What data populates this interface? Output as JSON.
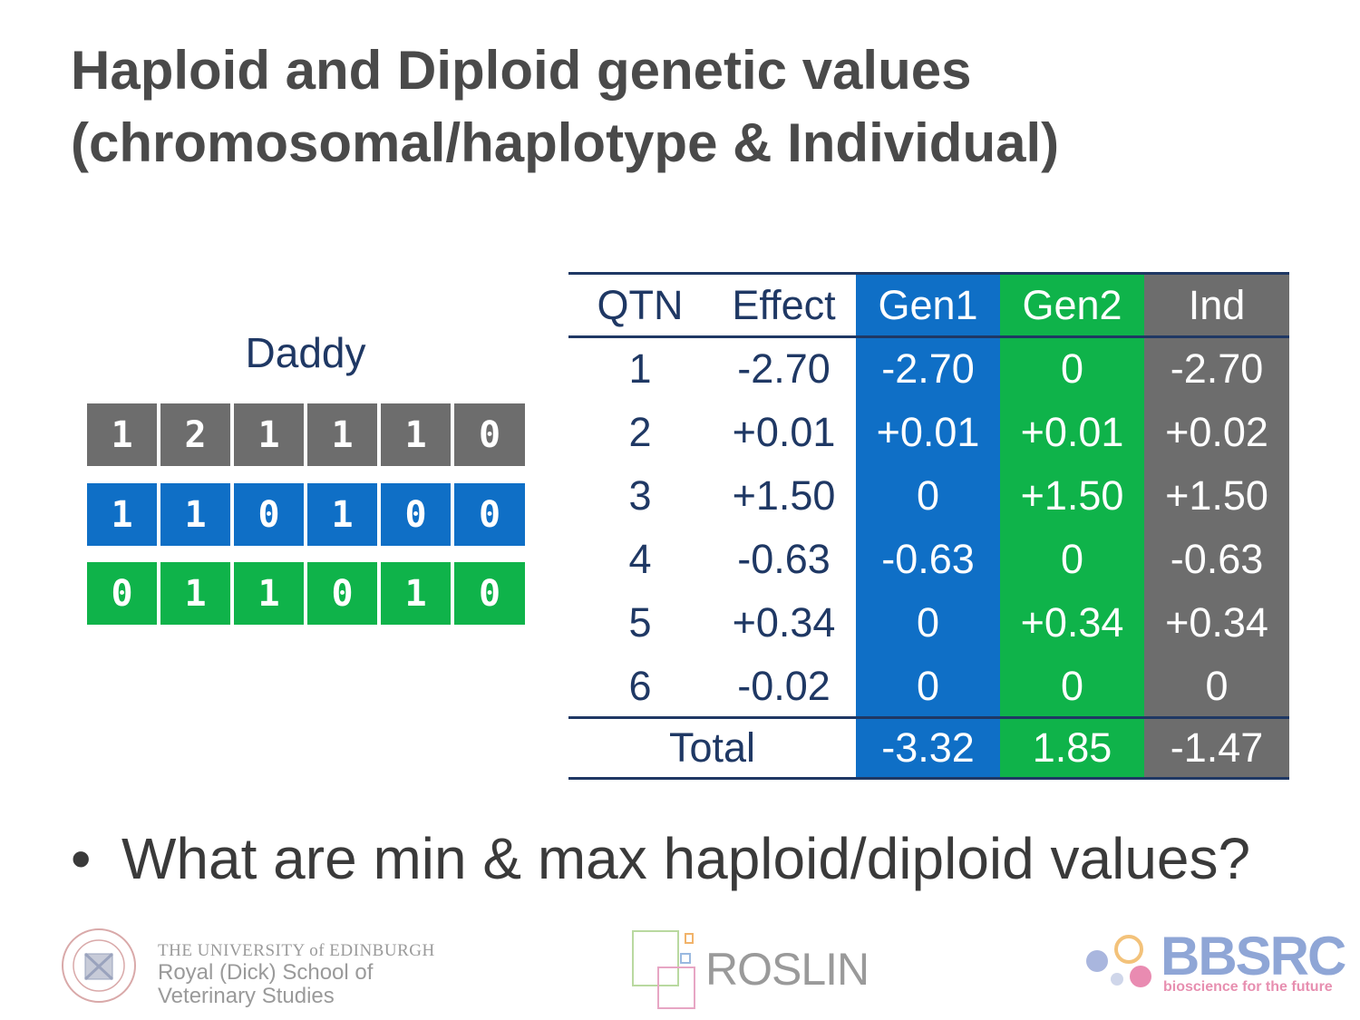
{
  "slide": {
    "title_line1": "Haploid and Diploid genetic values",
    "title_line2": "(chromosomal/haplotype & Individual)",
    "bullet": "What are min & max haploid/diploid values?"
  },
  "daddy": {
    "label": "Daddy",
    "rows": [
      {
        "color": "gray",
        "values": [
          "1",
          "2",
          "1",
          "1",
          "1",
          "0"
        ]
      },
      {
        "color": "blue",
        "values": [
          "1",
          "1",
          "0",
          "1",
          "0",
          "0"
        ]
      },
      {
        "color": "green",
        "values": [
          "0",
          "1",
          "1",
          "0",
          "1",
          "0"
        ]
      }
    ]
  },
  "table": {
    "headers": [
      "QTN",
      "Effect",
      "Gen1",
      "Gen2",
      "Ind"
    ],
    "rows": [
      [
        "1",
        "-2.70",
        "-2.70",
        "0",
        "-2.70"
      ],
      [
        "2",
        "+0.01",
        "+0.01",
        "+0.01",
        "+0.02"
      ],
      [
        "3",
        "+1.50",
        "0",
        "+1.50",
        "+1.50"
      ],
      [
        "4",
        "-0.63",
        "-0.63",
        "0",
        "-0.63"
      ],
      [
        "5",
        "+0.34",
        "0",
        "+0.34",
        "+0.34"
      ],
      [
        "6",
        "-0.02",
        "0",
        "0",
        "0"
      ]
    ],
    "total_label": "Total",
    "totals": [
      "-3.32",
      "1.85",
      "-1.47"
    ]
  },
  "colors": {
    "gray": "#6d6d6d",
    "blue": "#0f6fc6",
    "green": "#0fb34a",
    "navy": "#1f3864"
  },
  "logos": {
    "uoe_line1": "THE UNIVERSITY of EDINBURGH",
    "uoe_line2": "Royal (Dick) School of",
    "uoe_line3": "Veterinary Studies",
    "roslin": "ROSLIN",
    "bbsrc": "BBSRC",
    "bbsrc_tagline": "bioscience for the future"
  }
}
